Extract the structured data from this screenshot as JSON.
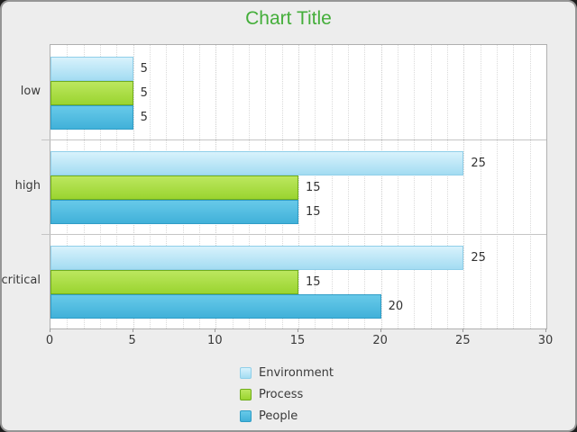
{
  "title": "Chart Title",
  "title_color": "#44ae3a",
  "chart_data": {
    "type": "bar",
    "orientation": "horizontal",
    "title": "Chart Title",
    "categories": [
      "low",
      "high",
      "critical"
    ],
    "series": [
      {
        "name": "Environment",
        "values": [
          5,
          25,
          25
        ],
        "color_top": "#d8f2fc",
        "color_bottom": "#a3dcf2",
        "border_color": "#8fcfe9"
      },
      {
        "name": "Process",
        "values": [
          5,
          15,
          15
        ],
        "color_top": "#bce75f",
        "color_bottom": "#9ad42f",
        "border_color": "#71ae1c"
      },
      {
        "name": "People",
        "values": [
          5,
          15,
          20
        ],
        "color_top": "#67c9e9",
        "color_bottom": "#41b1d9",
        "border_color": "#2f9dc6"
      }
    ],
    "xlim": [
      0,
      30
    ],
    "x_ticks": [
      0,
      5,
      10,
      15,
      20,
      25,
      30
    ],
    "minor_tick_step": 1,
    "grid": "vertical-dotted",
    "value_labels": true,
    "legend_position": "bottom",
    "xlabel": "",
    "ylabel": ""
  }
}
